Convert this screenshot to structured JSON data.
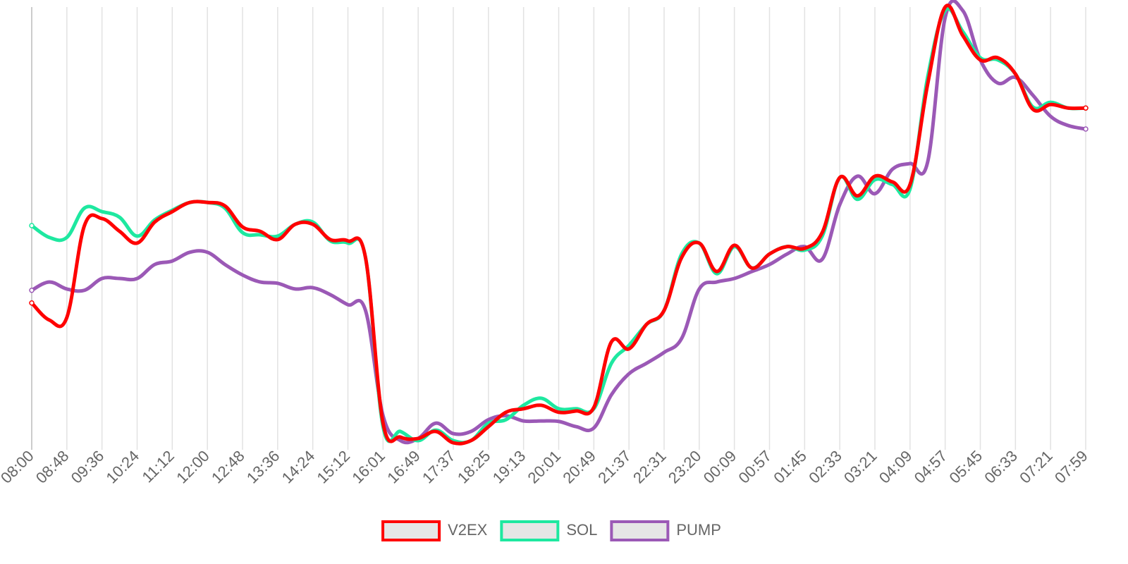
{
  "chart_data": {
    "type": "line",
    "categories": [
      "08:00",
      null,
      "08:48",
      null,
      "09:36",
      null,
      "10:24",
      null,
      "11:12",
      null,
      "12:00",
      null,
      "12:48",
      null,
      "13:36",
      null,
      "14:24",
      null,
      "15:12",
      null,
      "16:01",
      null,
      "16:49",
      null,
      "17:37",
      null,
      "18:25",
      null,
      "19:13",
      null,
      "20:01",
      null,
      "20:49",
      null,
      "21:37",
      null,
      "22:31",
      null,
      "23:20",
      null,
      "00:09",
      null,
      "00:57",
      null,
      "01:45",
      null,
      "02:33",
      null,
      "03:21",
      null,
      "04:09",
      null,
      "04:57",
      null,
      "05:45",
      null,
      "06:33",
      null,
      "07:21",
      null,
      "07:59"
    ],
    "ylim": [
      0,
      100
    ],
    "grid": true,
    "legend": "bottom",
    "series": [
      {
        "name": "V2EX",
        "color": "#ff0000",
        "values": [
          32.3,
          28.4,
          29.0,
          50.0,
          51.6,
          48.7,
          46.0,
          50.8,
          53.2,
          55.3,
          55.3,
          54.5,
          49.7,
          48.7,
          46.8,
          50.3,
          50.3,
          46.8,
          46.5,
          42.7,
          4.8,
          1.6,
          1.3,
          2.9,
          0.3,
          0.8,
          4.0,
          7.3,
          8.1,
          8.9,
          7.3,
          7.6,
          8.4,
          23.4,
          21.8,
          27.4,
          30.6,
          42.7,
          46.0,
          39.5,
          45.5,
          40.3,
          43.5,
          45.2,
          44.8,
          48.4,
          61.0,
          56.8,
          61.3,
          60.0,
          59.4,
          82.3,
          100,
          93.5,
          87.9,
          88.4,
          84.7,
          76.6,
          77.7,
          76.9,
          76.9
        ]
      },
      {
        "name": "SOL",
        "color": "#1ee8a0",
        "values": [
          50.0,
          47.3,
          47.3,
          54.0,
          53.2,
          51.9,
          47.6,
          51.3,
          53.5,
          55.3,
          55.3,
          54.0,
          48.4,
          47.9,
          47.6,
          50.3,
          50.8,
          46.5,
          46.0,
          42.7,
          4.0,
          2.9,
          0.8,
          3.2,
          0.8,
          0.8,
          4.8,
          5.6,
          8.9,
          10.5,
          8.1,
          8.1,
          8.1,
          18.5,
          22.6,
          27.4,
          30.6,
          43.5,
          46.0,
          39.0,
          45.2,
          40.3,
          43.5,
          45.2,
          44.4,
          47.6,
          61.0,
          56.0,
          60.5,
          59.4,
          58.4,
          83.9,
          99.2,
          94.4,
          88.4,
          87.9,
          84.7,
          77.1,
          78.2,
          76.9,
          76.9
        ]
      },
      {
        "name": "PUMP",
        "color": "#9b59b6",
        "values": [
          35.2,
          37.1,
          35.5,
          35.2,
          37.9,
          37.9,
          37.9,
          41.1,
          41.9,
          43.9,
          43.9,
          41.1,
          38.7,
          37.1,
          36.8,
          35.5,
          35.8,
          34.2,
          31.9,
          30.6,
          6.5,
          0.8,
          1.3,
          4.8,
          2.4,
          2.9,
          5.6,
          6.5,
          5.3,
          5.3,
          5.2,
          4.0,
          3.7,
          11.3,
          16.1,
          18.5,
          21.0,
          24.2,
          35.5,
          37.1,
          37.9,
          39.5,
          41.1,
          43.5,
          45.2,
          42.3,
          54.8,
          61.3,
          57.3,
          62.9,
          64.2,
          64.5,
          97.6,
          99.2,
          87.9,
          82.6,
          83.9,
          79.8,
          75.0,
          72.9,
          72.1
        ]
      }
    ]
  }
}
